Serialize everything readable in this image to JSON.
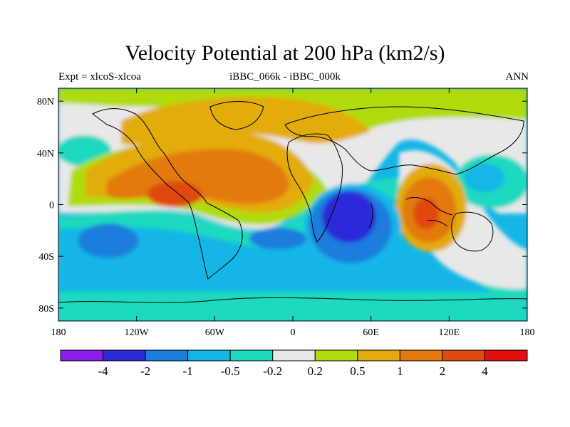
{
  "title": "Velocity Potential at 200 hPa (km2/s)",
  "subtitle_left": "Expt = xlcoS-xlcoa",
  "subtitle_center": "iBBC_066k - iBBC_000k",
  "subtitle_right": "ANN",
  "lat_ticks": [
    {
      "label": "80N",
      "lat": 80
    },
    {
      "label": "40N",
      "lat": 40
    },
    {
      "label": "0",
      "lat": 0
    },
    {
      "label": "40S",
      "lat": -40
    },
    {
      "label": "80S",
      "lat": -80
    }
  ],
  "lon_ticks": [
    {
      "label": "180",
      "lon": -180
    },
    {
      "label": "120W",
      "lon": -120
    },
    {
      "label": "60W",
      "lon": -60
    },
    {
      "label": "0",
      "lon": 0
    },
    {
      "label": "60E",
      "lon": 60
    },
    {
      "label": "120E",
      "lon": 120
    },
    {
      "label": "180",
      "lon": 180
    }
  ],
  "colorbar": {
    "colors": [
      "#8a1ee6",
      "#2b2bd8",
      "#1a7ddc",
      "#15b6e6",
      "#1ed9bf",
      "#e8e8e8",
      "#b0db10",
      "#e2ac10",
      "#e27a10",
      "#e04a10",
      "#e01010"
    ],
    "labels": [
      "-4",
      "-2",
      "-1",
      "-0.5",
      "-0.2",
      "0.2",
      "0.5",
      "1",
      "2",
      "4"
    ]
  },
  "colors": {
    "neg05": "#15b6e6",
    "neg02": "#1ed9bf",
    "zero": "#e8e8e8",
    "pos02": "#b0db10",
    "pos05": "#e2ac10",
    "pos1": "#e27a10",
    "pos2": "#e04a10",
    "neg1": "#1a7ddc",
    "neg2": "#2b2bd8"
  }
}
